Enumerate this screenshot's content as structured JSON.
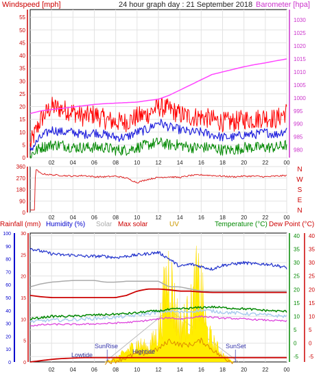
{
  "header": {
    "left_label": "Windspeed [mph]",
    "title": "24 hour graph day : 21 September 2018",
    "right_label": "Barometer [hpa]"
  },
  "colors": {
    "background": "#ffffff",
    "grid": "#e2e2e2",
    "frame": "#000000",
    "wind_axis": "#cc0000",
    "baro_axis": "#cc33cc",
    "gust": "#ff0000",
    "windspeed": "#2222dd",
    "min_wind": "#008800",
    "barometer": "#ff44ff",
    "direction": "#dd2222",
    "rain_axis": "#cc0000",
    "humidity_axis": "#0000cc",
    "humidity": "#2233cc",
    "solar": "#aaaaaa",
    "max_solar": "#cc0000",
    "uv": "#cc9900",
    "uv_fill": "#ffee00",
    "temperature": "#008800",
    "temp_axis": "#008800",
    "dewpoint": "#cc0000",
    "dewpoint_line": "#dd44dd",
    "feels_like": "#aaccee",
    "sun_label": "#3333aa",
    "tide_label": "#333399",
    "light_blue": "#99bbee"
  },
  "chart_data": [
    {
      "type": "line",
      "panel": "wind",
      "y_left_label": "Windspeed [mph]",
      "y_right_label": "Barometer [hpa]",
      "x_ticks": [
        "02",
        "04",
        "06",
        "08",
        "10",
        "12",
        "14",
        "16",
        "18",
        "20",
        "22",
        "00"
      ],
      "y_left_ticks": [
        "0",
        "5",
        "10",
        "15",
        "20",
        "25",
        "30",
        "35",
        "40",
        "45",
        "50",
        "55"
      ],
      "y_left_range": [
        0,
        58
      ],
      "y_right_ticks": [
        "980",
        "985",
        "990",
        "995",
        "1000",
        "1005",
        "1010",
        "1015",
        "1020",
        "1025",
        "1030"
      ],
      "y_right_range": [
        977,
        1034
      ],
      "grid": true,
      "series": [
        {
          "name": "",
          "role": "gust",
          "hours": [
            0,
            1,
            2,
            3,
            4,
            5,
            6,
            7,
            8,
            9,
            10,
            11,
            12,
            13,
            14,
            15,
            16,
            17,
            18,
            19,
            20,
            21,
            22,
            23,
            24
          ],
          "values": [
            5,
            15,
            20,
            19,
            18,
            16,
            17,
            15,
            14,
            14,
            16,
            17,
            20,
            19,
            17,
            16,
            16,
            15,
            14,
            14,
            15,
            15,
            16,
            15,
            18
          ]
        },
        {
          "name": "",
          "role": "speed",
          "hours": [
            0,
            1,
            2,
            3,
            4,
            5,
            6,
            7,
            8,
            9,
            10,
            11,
            12,
            13,
            14,
            15,
            16,
            17,
            18,
            19,
            20,
            21,
            22,
            23,
            24
          ],
          "values": [
            3,
            8,
            11,
            10,
            10,
            9,
            10,
            9,
            8,
            8,
            10,
            11,
            14,
            12,
            11,
            10,
            10,
            9,
            8,
            8,
            9,
            9,
            10,
            9,
            11
          ]
        },
        {
          "name": "",
          "role": "min",
          "hours": [
            0,
            1,
            2,
            3,
            4,
            5,
            6,
            7,
            8,
            9,
            10,
            11,
            12,
            13,
            14,
            15,
            16,
            17,
            18,
            19,
            20,
            21,
            22,
            23,
            24
          ],
          "values": [
            1,
            4,
            5,
            5,
            4,
            4,
            4,
            4,
            3,
            3,
            4,
            5,
            6,
            5,
            5,
            4,
            4,
            4,
            3,
            3,
            4,
            4,
            4,
            4,
            5
          ]
        },
        {
          "name": "",
          "role": "barometer",
          "hours": [
            0,
            1,
            2,
            3,
            4,
            5,
            6,
            7,
            8,
            9,
            10,
            11,
            12,
            13,
            14,
            15,
            16,
            17,
            18,
            19,
            20,
            21,
            22,
            23,
            24
          ],
          "values": [
            994,
            995,
            995.5,
            996,
            996.5,
            997,
            997.5,
            997.8,
            998,
            998.2,
            998.4,
            999,
            999.5,
            1001,
            1003,
            1005,
            1007,
            1009,
            1010,
            1011,
            1012,
            1012.8,
            1013.5,
            1014.3,
            1015
          ]
        }
      ]
    },
    {
      "type": "line",
      "panel": "direction",
      "x_ticks": [
        "02",
        "04",
        "06",
        "08",
        "10",
        "12",
        "14",
        "16",
        "18",
        "20",
        "22",
        "00"
      ],
      "y_left_ticks": [
        "0",
        "90",
        "180",
        "270",
        "360"
      ],
      "y_left_range": [
        0,
        360
      ],
      "y_right_labels": [
        "N",
        "W",
        "S",
        "E",
        "N"
      ],
      "grid": true,
      "series": [
        {
          "name": "",
          "role": "direction",
          "hours": [
            0,
            0.4,
            0.5,
            1,
            2,
            3,
            4,
            5,
            6,
            7,
            8,
            9,
            10,
            11,
            12,
            13,
            14,
            15,
            16,
            17,
            18,
            19,
            20,
            21,
            22,
            23,
            24
          ],
          "values": [
            20,
            20,
            340,
            305,
            295,
            290,
            285,
            290,
            280,
            280,
            285,
            270,
            235,
            260,
            275,
            280,
            275,
            290,
            295,
            290,
            285,
            280,
            285,
            285,
            280,
            285,
            290
          ]
        }
      ]
    },
    {
      "type": "line",
      "panel": "temperature",
      "legend": [
        "Rainfall (mm)",
        "Humidity (%)",
        "Solar",
        "Max solar",
        "UV",
        "Temperature (°C)",
        "Dew Point (°C)"
      ],
      "legend_placement": "top",
      "x_ticks": [
        "02",
        "04",
        "06",
        "08",
        "10",
        "12",
        "14",
        "16",
        "18",
        "20",
        "22",
        "00"
      ],
      "y_rain_ticks": [
        "0",
        "5",
        "10",
        "15",
        "20",
        "25",
        "30"
      ],
      "y_humidity_ticks": [
        "0",
        "10",
        "20",
        "30",
        "40",
        "50",
        "60",
        "70",
        "80",
        "90",
        "100"
      ],
      "y_temp_ticks": [
        "-5",
        "0",
        "5",
        "10",
        "15",
        "20",
        "25",
        "30",
        "35",
        "40"
      ],
      "y_dew_ticks": [
        "-5",
        "0",
        "5",
        "10",
        "15",
        "20",
        "25",
        "30",
        "35",
        "40"
      ],
      "y_temp_range": [
        -7,
        41
      ],
      "grid": true,
      "annotations": [
        "SunRise",
        "Hightide",
        "Lowtide",
        "SunSet"
      ],
      "series": [
        {
          "name": "Humidity (%)",
          "hours": [
            0,
            1,
            2,
            3,
            4,
            5,
            6,
            7,
            8,
            9,
            10,
            11,
            12,
            13,
            14,
            15,
            16,
            17,
            18,
            19,
            20,
            21,
            22,
            23,
            24
          ],
          "values": [
            88,
            86,
            84,
            83,
            83,
            82,
            82,
            82,
            81,
            82,
            83,
            84,
            85,
            80,
            74,
            76,
            74,
            72,
            75,
            76,
            77,
            76,
            76,
            75,
            73
          ]
        },
        {
          "name": "Solar",
          "hours": [
            0,
            1,
            2,
            3,
            4,
            5,
            6,
            7,
            8,
            9,
            10,
            11,
            12,
            13,
            14,
            15,
            16,
            17,
            18,
            19,
            20,
            21,
            22,
            23,
            24
          ],
          "values": [
            17.5,
            18.2,
            18.6,
            18.8,
            19,
            19,
            19,
            18.6,
            18.6,
            18.8,
            18.8,
            18.8,
            18.8,
            17.5,
            17.5,
            17,
            16.5,
            16.5,
            16.5,
            16.5,
            16.5,
            16.5,
            16.5,
            16.5,
            16.5
          ]
        },
        {
          "name": "Max solar",
          "hours": [
            0,
            1,
            2,
            3,
            4,
            5,
            6,
            7,
            8,
            9,
            10,
            11,
            12,
            13,
            14,
            15,
            16,
            17,
            18,
            19,
            20,
            21,
            22,
            23,
            24
          ],
          "values": [
            15.5,
            15.2,
            15,
            15,
            15,
            15,
            15,
            15,
            15,
            15.5,
            16.5,
            17,
            17,
            16.8,
            16.5,
            16.5,
            16.3,
            16.2,
            16.2,
            16.2,
            16.2,
            16.2,
            16.2,
            16.2,
            16.2
          ]
        },
        {
          "name": "Temperature (°C)",
          "hours": [
            0,
            1,
            2,
            3,
            4,
            5,
            6,
            7,
            8,
            9,
            10,
            11,
            12,
            13,
            14,
            15,
            16,
            17,
            18,
            19,
            20,
            21,
            22,
            23,
            24
          ],
          "values": [
            9,
            9.5,
            10,
            10,
            10,
            10.3,
            10.5,
            10.6,
            10.8,
            11,
            11.3,
            11.8,
            12,
            12.5,
            12.8,
            13,
            13.3,
            13.5,
            13.2,
            13,
            12.8,
            12.5,
            12.2,
            12,
            11.8
          ]
        },
        {
          "name": "Dew Point (°C)",
          "hours": [
            0,
            1,
            2,
            3,
            4,
            5,
            6,
            7,
            8,
            9,
            10,
            11,
            12,
            13,
            14,
            15,
            16,
            17,
            18,
            19,
            20,
            21,
            22,
            23,
            24
          ],
          "values": [
            6.5,
            6.8,
            7,
            7,
            7,
            7,
            7.2,
            7.3,
            7.5,
            7.7,
            8,
            8.5,
            9,
            9.5,
            9,
            9.5,
            10,
            9.6,
            9.3,
            9.2,
            9,
            8.8,
            8.6,
            8.4,
            8.2
          ]
        },
        {
          "name": "",
          "role": "feels_like",
          "hours": [
            0,
            1,
            2,
            3,
            4,
            5,
            6,
            7,
            8,
            9,
            10,
            11,
            12,
            13,
            14,
            15,
            16,
            17,
            18,
            19,
            20,
            21,
            22,
            23,
            24
          ],
          "values": [
            8,
            8.3,
            8.6,
            8.6,
            8.8,
            9,
            9.2,
            9.4,
            9.6,
            10,
            10.4,
            11,
            11.5,
            12,
            11.5,
            11.8,
            12.3,
            12,
            11.5,
            11.3,
            11,
            10.8,
            10.5,
            10.2,
            10
          ]
        },
        {
          "name": "Rainfall (mm)",
          "hours": [
            0,
            1,
            2,
            3,
            4,
            5,
            6,
            7,
            8,
            9,
            10,
            11,
            12,
            13,
            14,
            15,
            16,
            17,
            18,
            19,
            20,
            21,
            22,
            23,
            24
          ],
          "values": [
            0,
            0.3,
            0.6,
            0.8,
            0.9,
            1,
            1,
            1,
            1,
            1,
            1,
            1,
            1,
            1,
            1,
            1,
            1,
            1,
            1,
            1,
            1,
            1,
            1,
            1,
            1
          ]
        },
        {
          "name": "UV",
          "hours": [
            7,
            8,
            9,
            10,
            11,
            12,
            12.5,
            13,
            13.5,
            14,
            15,
            15.5,
            16,
            16.5,
            17,
            18,
            19
          ],
          "values": [
            0,
            1,
            3,
            5,
            4,
            8,
            18,
            26,
            16,
            10,
            14,
            22,
            20,
            9,
            6,
            2,
            0
          ]
        },
        {
          "name": "",
          "role": "uv_line",
          "hours": [
            7,
            8,
            9,
            10,
            11,
            12,
            13,
            14,
            15,
            16,
            17,
            18,
            19
          ],
          "values": [
            0,
            0.3,
            1,
            2,
            2,
            3,
            5,
            4,
            4,
            5,
            3,
            1,
            0
          ]
        }
      ]
    }
  ]
}
